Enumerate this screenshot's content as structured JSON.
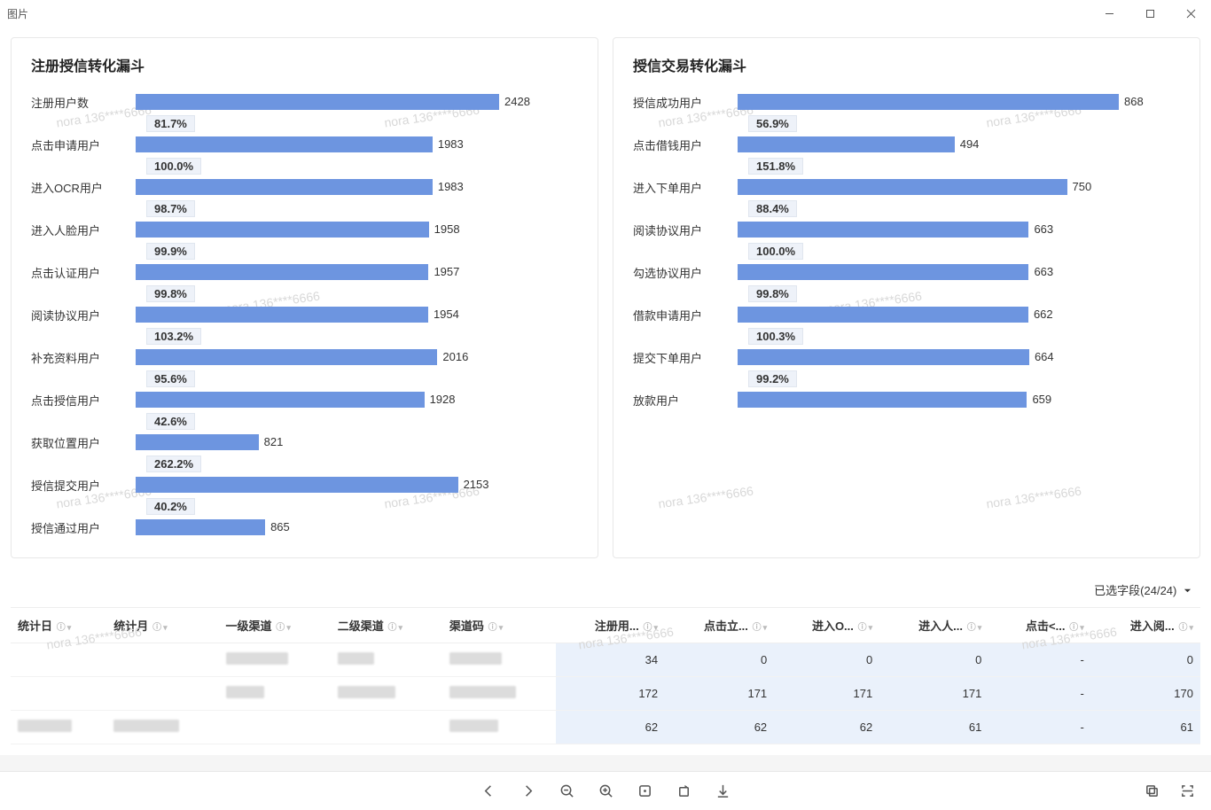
{
  "window": {
    "title": "图片"
  },
  "watermark_text": "nora 136****6666",
  "chart_left": {
    "title": "注册授信转化漏斗",
    "type": "funnel-bar",
    "bar_color": "#6d95e0",
    "pct_bg": "#eef2f9",
    "max_value": 2428,
    "rows": [
      {
        "label": "注册用户数",
        "value": 2428,
        "pct_to_next": "81.7%"
      },
      {
        "label": "点击申请用户",
        "value": 1983,
        "pct_to_next": "100.0%"
      },
      {
        "label": "进入OCR用户",
        "value": 1983,
        "pct_to_next": "98.7%"
      },
      {
        "label": "进入人脸用户",
        "value": 1958,
        "pct_to_next": "99.9%"
      },
      {
        "label": "点击认证用户",
        "value": 1957,
        "pct_to_next": "99.8%"
      },
      {
        "label": "阅读协议用户",
        "value": 1954,
        "pct_to_next": "103.2%"
      },
      {
        "label": "补充资料用户",
        "value": 2016,
        "pct_to_next": "95.6%"
      },
      {
        "label": "点击授信用户",
        "value": 1928,
        "pct_to_next": "42.6%"
      },
      {
        "label": "获取位置用户",
        "value": 821,
        "pct_to_next": "262.2%"
      },
      {
        "label": "授信提交用户",
        "value": 2153,
        "pct_to_next": "40.2%"
      },
      {
        "label": "授信通过用户",
        "value": 865
      }
    ]
  },
  "chart_right": {
    "title": "授信交易转化漏斗",
    "type": "funnel-bar",
    "bar_color": "#6d95e0",
    "pct_bg": "#eef2f9",
    "max_value": 868,
    "rows": [
      {
        "label": "授信成功用户",
        "value": 868,
        "pct_to_next": "56.9%"
      },
      {
        "label": "点击借钱用户",
        "value": 494,
        "pct_to_next": "151.8%"
      },
      {
        "label": "进入下单用户",
        "value": 750,
        "pct_to_next": "88.4%"
      },
      {
        "label": "阅读协议用户",
        "value": 663,
        "pct_to_next": "100.0%"
      },
      {
        "label": "勾选协议用户",
        "value": 663,
        "pct_to_next": "99.8%"
      },
      {
        "label": "借款申请用户",
        "value": 662,
        "pct_to_next": "100.3%"
      },
      {
        "label": "提交下单用户",
        "value": 664,
        "pct_to_next": "99.2%"
      },
      {
        "label": "放款用户",
        "value": 659
      }
    ]
  },
  "table": {
    "fields_selected_label": "已选字段(24/24)",
    "columns": [
      {
        "label": "统计日",
        "sortable": true
      },
      {
        "label": "统计月",
        "sortable": true
      },
      {
        "label": "一级渠道",
        "sortable": true
      },
      {
        "label": "二级渠道",
        "sortable": true
      },
      {
        "label": "渠道码",
        "sortable": true
      },
      {
        "label": "注册用...",
        "numeric": true
      },
      {
        "label": "点击立...",
        "numeric": true
      },
      {
        "label": "进入O...",
        "numeric": true
      },
      {
        "label": "进入人...",
        "numeric": true
      },
      {
        "label": "点击<...",
        "numeric": true
      },
      {
        "label": "进入阅...",
        "numeric": true
      }
    ],
    "rows": [
      {
        "cells": [
          "",
          "",
          "blur",
          "blur",
          "blur",
          "34",
          "0",
          "0",
          "0",
          "-",
          "0"
        ]
      },
      {
        "cells": [
          "",
          "",
          "blur",
          "blur",
          "blur",
          "172",
          "171",
          "171",
          "171",
          "-",
          "170"
        ]
      },
      {
        "cells": [
          "blur",
          "blur",
          "",
          "",
          "blur",
          "62",
          "62",
          "62",
          "61",
          "-",
          "61"
        ]
      }
    ]
  }
}
